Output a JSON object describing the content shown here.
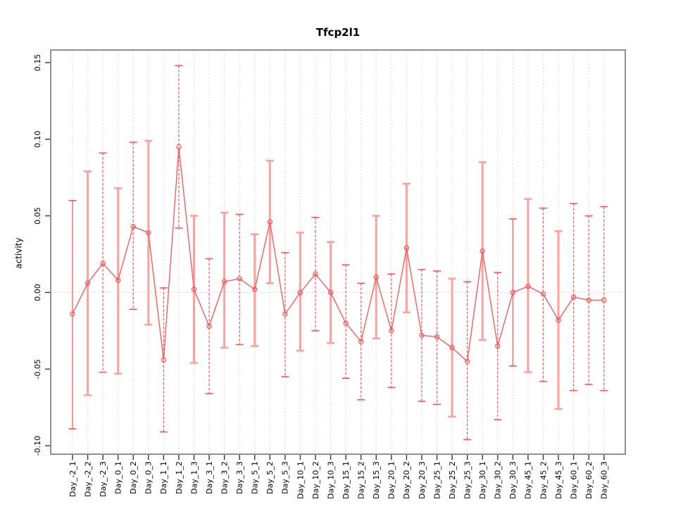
{
  "chart_data": {
    "type": "line",
    "title": "Tfcp2l1",
    "xlabel": "",
    "ylabel": "activity",
    "ylim": [
      -0.1055,
      0.1582
    ],
    "yticks": [
      {
        "value": 0.15,
        "label": "0.15"
      },
      {
        "value": 0.1,
        "label": "0.10"
      },
      {
        "value": 0.05,
        "label": "0.05"
      },
      {
        "value": 0.0,
        "label": "0.00"
      },
      {
        "value": -0.05,
        "label": "-0.05"
      },
      {
        "value": -0.1,
        "label": "-0.10"
      }
    ],
    "grid": "vertical-dotted",
    "zero_reference_line": true,
    "legend": "none",
    "marker": "open-circle",
    "categories": [
      "Day_-2_1",
      "Day_-2_2",
      "Day_-2_3",
      "Day_0_1",
      "Day_0_2",
      "Day_0_3",
      "Day_1_1",
      "Day_1_2",
      "Day_1_3",
      "Day_3_1",
      "Day_3_2",
      "Day_3_3",
      "Day_5_1",
      "Day_5_2",
      "Day_5_3",
      "Day_10_1",
      "Day_10_2",
      "Day_10_3",
      "Day_15_1",
      "Day_15_2",
      "Day_15_3",
      "Day_20_1",
      "Day_20_2",
      "Day_20_3",
      "Day_25_1",
      "Day_25_2",
      "Day_25_3",
      "Day_30_1",
      "Day_30_2",
      "Day_30_3",
      "Day_45_1",
      "Day_45_2",
      "Day_45_3",
      "Day_60_1",
      "Day_60_2",
      "Day_60_3"
    ],
    "series": [
      {
        "name": "activity",
        "values": [
          -0.014,
          0.006,
          0.019,
          0.008,
          0.043,
          0.039,
          -0.044,
          0.095,
          0.002,
          -0.022,
          0.007,
          0.009,
          0.002,
          0.046,
          -0.014,
          0.0,
          0.012,
          0.0,
          -0.02,
          -0.032,
          0.01,
          -0.025,
          0.029,
          -0.028,
          -0.029,
          -0.036,
          -0.045,
          0.027,
          -0.035,
          0.0,
          0.004,
          -0.001,
          -0.018,
          -0.003,
          -0.005,
          -0.005
        ],
        "error_high": [
          0.06,
          0.079,
          0.091,
          0.068,
          0.098,
          0.099,
          0.003,
          0.148,
          0.05,
          0.022,
          0.052,
          0.051,
          0.038,
          0.086,
          0.026,
          0.039,
          0.049,
          0.033,
          0.018,
          0.006,
          0.05,
          0.012,
          0.071,
          0.015,
          0.014,
          0.009,
          0.007,
          0.085,
          0.013,
          0.048,
          0.061,
          0.055,
          0.04,
          0.058,
          0.05,
          0.056
        ],
        "error_low": [
          -0.089,
          -0.067,
          -0.052,
          -0.053,
          -0.011,
          -0.021,
          -0.091,
          0.042,
          -0.046,
          -0.066,
          -0.036,
          -0.034,
          -0.035,
          0.006,
          -0.055,
          -0.038,
          -0.025,
          -0.033,
          -0.056,
          -0.07,
          -0.03,
          -0.062,
          -0.013,
          -0.071,
          -0.073,
          -0.081,
          -0.096,
          -0.031,
          -0.083,
          -0.048,
          -0.052,
          -0.058,
          -0.076,
          -0.064,
          -0.06,
          -0.064
        ],
        "bar_styles": [
          "solid",
          "solid-light",
          "dashed",
          "solid-light",
          "dashed",
          "solid-light",
          "dashed",
          "dashed",
          "solid-light",
          "dashed",
          "solid-light",
          "dashed",
          "solid-light",
          "solid-light",
          "dashed",
          "solid-light",
          "dashed",
          "solid-light",
          "dashed",
          "dashed",
          "solid-light",
          "dashed",
          "solid-light",
          "dashed",
          "dashed",
          "solid-light",
          "dashed",
          "solid-light",
          "dashed",
          "solid",
          "solid-light",
          "dashed",
          "solid-light",
          "dashed",
          "dashed",
          "dashed"
        ]
      }
    ],
    "colors": {
      "series": "#ff5252",
      "error_bar_light": "#ffa0a0",
      "frame": "#909090",
      "grid": "#d8d8d8",
      "zero_line": "#cfcfcf",
      "tick": "#333333",
      "text": "#000000",
      "background": "#ffffff"
    }
  }
}
